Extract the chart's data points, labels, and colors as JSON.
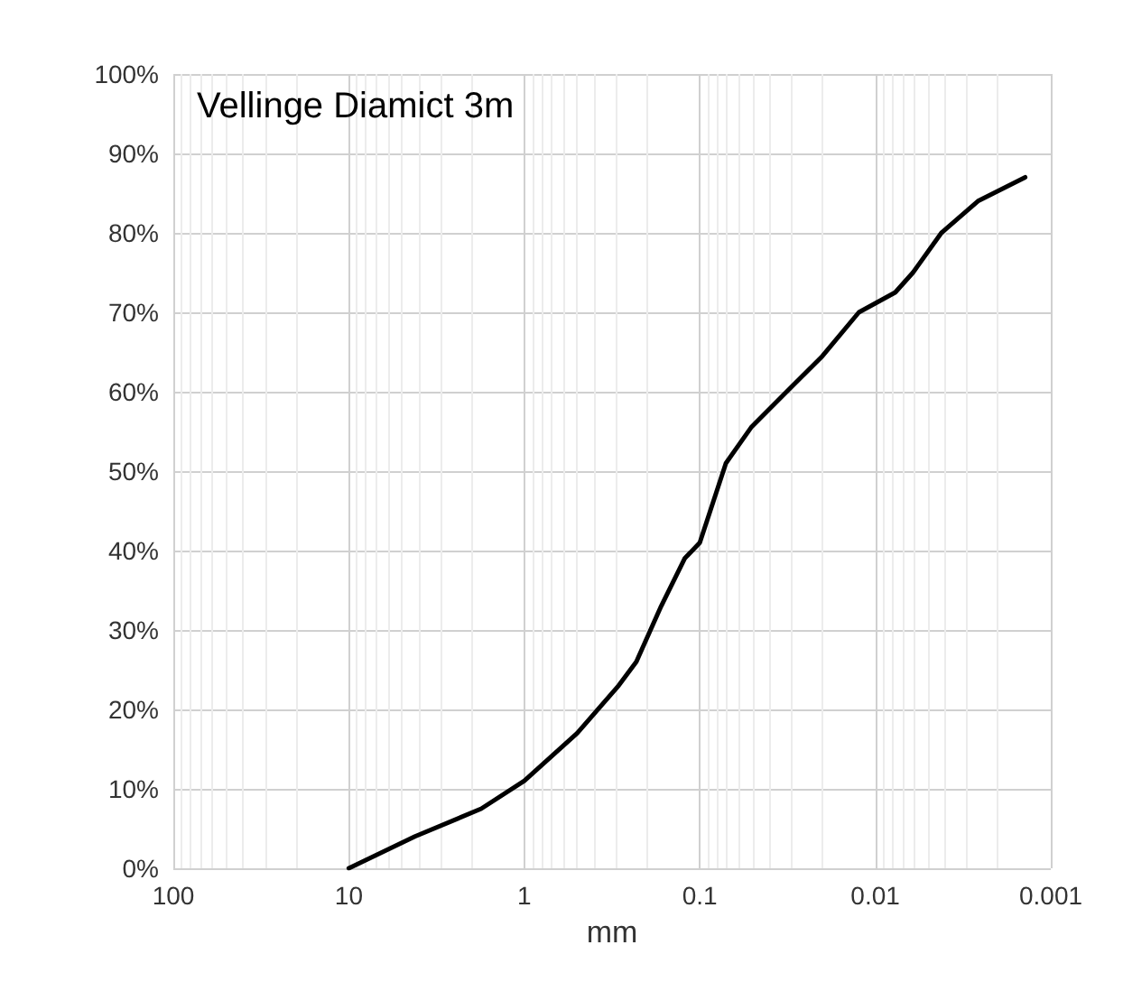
{
  "chart_data": {
    "type": "line",
    "title": "Vellinge Diamict 3m",
    "xlabel": "mm",
    "x": [
      10,
      4.2,
      1.76,
      1,
      0.5,
      0.29,
      0.23,
      0.166,
      0.122,
      0.1,
      0.071,
      0.051,
      0.032,
      0.02,
      0.0124,
      0.0077,
      0.0061,
      0.0042,
      0.0026,
      0.0014
    ],
    "series": [
      {
        "color": "#000000",
        "values": [
          0,
          4,
          7.5,
          11,
          17,
          23,
          26,
          33,
          39,
          41,
          51,
          55.5,
          60,
          64.5,
          70,
          72.5,
          75,
          80,
          84,
          87
        ]
      }
    ],
    "log": "x",
    "xlim": [
      100,
      0.001
    ],
    "xticks": [
      100,
      10,
      1,
      0.1,
      0.01,
      0.001
    ],
    "ylim": [
      0,
      100
    ],
    "yticks": [
      {
        "value": 0,
        "label": "0%"
      },
      {
        "value": 10,
        "label": "10%"
      },
      {
        "value": 20,
        "label": "20%"
      },
      {
        "value": 30,
        "label": "30%"
      },
      {
        "value": 40,
        "label": "40%"
      },
      {
        "value": 50,
        "label": "50%"
      },
      {
        "value": 60,
        "label": "60%"
      },
      {
        "value": 70,
        "label": "70%"
      },
      {
        "value": 80,
        "label": "80%"
      },
      {
        "value": 90,
        "label": "90%"
      },
      {
        "value": 100,
        "label": "100%"
      }
    ],
    "grid": true,
    "marker": "none",
    "line_style": "solid"
  }
}
